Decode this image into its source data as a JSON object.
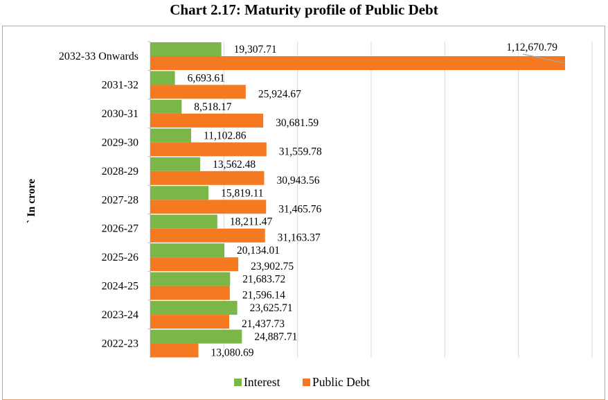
{
  "chart_data": {
    "type": "bar",
    "orientation": "horizontal",
    "title": "Chart 2.17: Maturity profile of Public Debt",
    "ylabel": "` In crore",
    "xlabel": "",
    "categories": [
      "2032-33 Onwards",
      "2031-32",
      "2030-31",
      "2029-30",
      "2028-29",
      "2027-28",
      "2026-27",
      "2025-26",
      "2024-25",
      "2023-24",
      "2022-23"
    ],
    "category_labels": [
      "2032-33 Onwards",
      "2031-32",
      "2030-31",
      "2029-30",
      "2028-29",
      "2027-28",
      "2026-27",
      "2025-26",
      "2024-25",
      "2023-24",
      "2022-23"
    ],
    "series": [
      {
        "name": "Interest",
        "color": "#7ab648",
        "values": [
          19307.71,
          6693.61,
          8518.17,
          11102.86,
          13562.48,
          15819.11,
          18211.47,
          20134.01,
          21683.72,
          23625.71,
          24887.71
        ],
        "labels": [
          "19,307.71",
          "6,693.61",
          "8,518.17",
          "11,102.86",
          "13,562.48",
          "15,819.11",
          "18,211.47",
          "20,134.01",
          "21,683.72",
          "23,625.71",
          "24,887.71"
        ]
      },
      {
        "name": "Public Debt",
        "color": "#f47920",
        "values": [
          112670.79,
          25924.67,
          30681.59,
          31559.78,
          30943.56,
          31465.76,
          31163.37,
          23902.75,
          21596.14,
          21437.73,
          13080.69
        ],
        "labels": [
          "1,12,670.79",
          "25,924.67",
          "30,681.59",
          "31,559.78",
          "30,943.56",
          "31,465.76",
          "31,163.37",
          "23,902.75",
          "21,596.14",
          "21,437.73",
          "13,080.69"
        ]
      }
    ],
    "xlim": [
      0,
      120000
    ],
    "grid": true,
    "legend_position": "bottom"
  }
}
